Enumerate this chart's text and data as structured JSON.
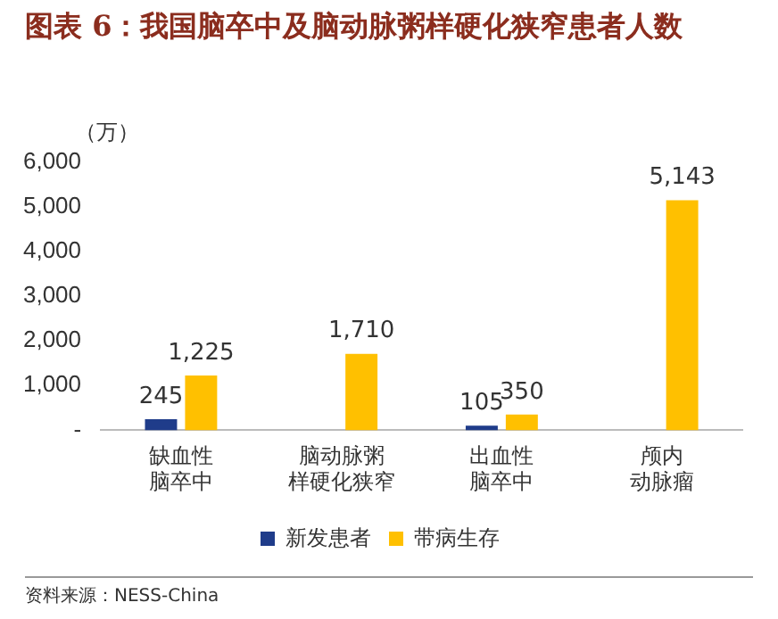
{
  "chart_data": {
    "type": "bar",
    "title": "图表 6：我国脑卒中及脑动脉粥样硬化狭窄患者人数",
    "ylabel": "（万）",
    "categories": [
      "缺血性脑卒中",
      "脑动脉粥样硬化狭窄",
      "出血性脑卒中",
      "颅内动脉瘤"
    ],
    "series": [
      {
        "name": "新发患者",
        "color": "#1f3c8a",
        "values": [
          245,
          null,
          105,
          null
        ],
        "value_labels": [
          "245",
          null,
          "105",
          null
        ]
      },
      {
        "name": "带病生存",
        "color": "#ffc000",
        "values": [
          1225,
          1710,
          350,
          5143
        ],
        "value_labels": [
          "1,225",
          "1,710",
          "350",
          "5,143"
        ]
      }
    ],
    "ylim": [
      0,
      6000
    ],
    "yticks": [
      {
        "value": 0,
        "label": "-"
      },
      {
        "value": 1000,
        "label": "1,000"
      },
      {
        "value": 2000,
        "label": "2,000"
      },
      {
        "value": 3000,
        "label": "3,000"
      },
      {
        "value": 4000,
        "label": "4,000"
      },
      {
        "value": 5000,
        "label": "5,000"
      },
      {
        "value": 6000,
        "label": "6,000"
      }
    ],
    "grid": false,
    "legend": "bottom",
    "annotations": [
      "资料来源：NESS-China"
    ]
  }
}
